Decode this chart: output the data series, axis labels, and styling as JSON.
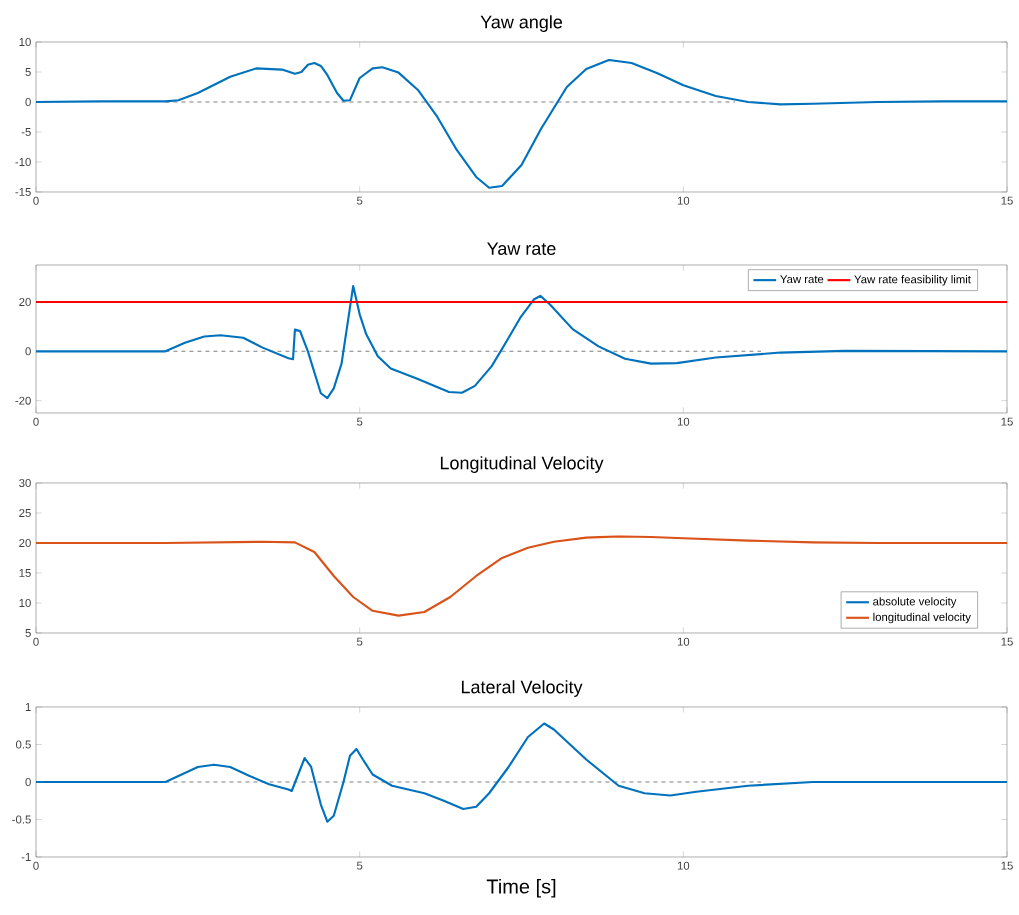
{
  "chart_data": [
    {
      "type": "line",
      "title": "Yaw angle",
      "xlim": [
        0,
        15
      ],
      "xticks": [
        0,
        5,
        10,
        15
      ],
      "ylim": [
        -15,
        10
      ],
      "yticks": [
        -15,
        -10,
        -5,
        0,
        5,
        10
      ],
      "series": [
        {
          "color": "#808080",
          "line_style": "dashed",
          "x": [
            2,
            10.8
          ],
          "values": [
            0,
            0
          ]
        },
        {
          "color": "#0072bd",
          "x": [
            0,
            1,
            2,
            2.2,
            2.5,
            3,
            3.4,
            3.8,
            4.0,
            4.1,
            4.2,
            4.3,
            4.4,
            4.5,
            4.65,
            4.75,
            4.85,
            5.0,
            5.2,
            5.35,
            5.6,
            5.9,
            6.2,
            6.5,
            6.8,
            7.0,
            7.2,
            7.5,
            7.8,
            8.0,
            8.2,
            8.5,
            8.85,
            9.2,
            9.6,
            10.0,
            10.5,
            11,
            11.5,
            12,
            13,
            14,
            15
          ],
          "values": [
            0,
            0.1,
            0.1,
            0.3,
            1.5,
            4.2,
            5.6,
            5.4,
            4.7,
            5.0,
            6.2,
            6.5,
            6.0,
            4.5,
            1.5,
            0.2,
            0.3,
            4.0,
            5.6,
            5.8,
            4.9,
            2.0,
            -2.5,
            -8,
            -12.5,
            -14.3,
            -14,
            -10.5,
            -4.5,
            -1,
            2.5,
            5.5,
            7.0,
            6.5,
            4.8,
            2.8,
            1.0,
            0.0,
            -0.4,
            -0.3,
            0,
            0.1,
            0.1
          ]
        }
      ]
    },
    {
      "type": "line",
      "title": "Yaw rate",
      "xlim": [
        0,
        15
      ],
      "xticks": [
        0,
        5,
        10,
        15
      ],
      "ylim": [
        -25,
        35
      ],
      "yticks": [
        -20,
        0,
        20
      ],
      "legend": "top right",
      "series": [
        {
          "color": "#808080",
          "line_style": "dashed",
          "x": [
            2,
            11.2
          ],
          "values": [
            0,
            0
          ]
        },
        {
          "name": "Yaw rate",
          "color": "#0072bd",
          "x": [
            0,
            1,
            2,
            2.3,
            2.6,
            2.85,
            3.2,
            3.5,
            3.9,
            3.97,
            4.0,
            4.08,
            4.2,
            4.4,
            4.5,
            4.6,
            4.72,
            4.9,
            5.0,
            5.1,
            5.28,
            5.48,
            5.88,
            6.38,
            6.58,
            6.78,
            7.04,
            7.29,
            7.49,
            7.69,
            7.79,
            7.94,
            8.29,
            8.69,
            9.1,
            9.5,
            9.9,
            10.5,
            11.5,
            12.5,
            15
          ],
          "values": [
            0,
            0,
            0,
            3.5,
            6,
            6.5,
            5.5,
            1.5,
            -2.8,
            -3.2,
            8.8,
            8.2,
            0,
            -17,
            -19,
            -15,
            -5,
            26.5,
            15,
            7,
            -2,
            -7,
            -11,
            -16.5,
            -16.8,
            -14,
            -6,
            5,
            14,
            21,
            22.5,
            19,
            9,
            2,
            -3,
            -5,
            -4.8,
            -2.5,
            -0.5,
            0.2,
            0
          ]
        },
        {
          "name": "Yaw rate feasibility limit",
          "color": "#ff0000",
          "x": [
            0,
            15
          ],
          "values": [
            20,
            20
          ]
        }
      ]
    },
    {
      "type": "line",
      "title": "Longitudinal Velocity",
      "xlim": [
        0,
        15
      ],
      "xticks": [
        0,
        5,
        10,
        15
      ],
      "ylim": [
        5,
        30
      ],
      "yticks": [
        5,
        10,
        15,
        20,
        25,
        30
      ],
      "legend": "bottom right",
      "series": [
        {
          "name": "absolute velocity",
          "color": "#0072bd"
        },
        {
          "name": "longitudinal velocity",
          "color": "#d95319",
          "x": [
            0,
            2,
            3.5,
            4.0,
            4.3,
            4.6,
            4.9,
            5.2,
            5.6,
            6.0,
            6.4,
            6.8,
            7.2,
            7.6,
            8.0,
            8.5,
            9.0,
            9.5,
            10,
            11,
            12,
            13,
            15
          ],
          "values": [
            20,
            20,
            20.2,
            20.1,
            18.5,
            14.5,
            11,
            8.7,
            7.9,
            8.5,
            11,
            14.5,
            17.5,
            19.2,
            20.2,
            20.9,
            21.1,
            21.0,
            20.8,
            20.4,
            20.1,
            20,
            20
          ]
        }
      ]
    },
    {
      "type": "line",
      "title": "Lateral Velocity",
      "xlabel": "Time [s]",
      "xlim": [
        0,
        15
      ],
      "xticks": [
        0,
        5,
        10,
        15
      ],
      "ylim": [
        -1,
        1
      ],
      "yticks": [
        -1,
        -0.5,
        0,
        0.5,
        1
      ],
      "series": [
        {
          "color": "#808080",
          "line_style": "dashed",
          "x": [
            2,
            11.2
          ],
          "values": [
            0,
            0
          ]
        },
        {
          "color": "#0072bd",
          "x": [
            0,
            2,
            2.2,
            2.5,
            2.75,
            3,
            3.3,
            3.6,
            3.9,
            3.95,
            4.05,
            4.15,
            4.25,
            4.4,
            4.5,
            4.6,
            4.75,
            4.85,
            4.95,
            5.05,
            5.2,
            5.5,
            6.0,
            6.3,
            6.6,
            6.8,
            7.0,
            7.3,
            7.6,
            7.85,
            8.0,
            8.5,
            9.0,
            9.4,
            9.8,
            10.2,
            11,
            12,
            13,
            15
          ],
          "values": [
            0,
            0,
            0.08,
            0.2,
            0.23,
            0.2,
            0.08,
            -0.03,
            -0.1,
            -0.12,
            0.1,
            0.32,
            0.2,
            -0.3,
            -0.53,
            -0.45,
            0,
            0.35,
            0.44,
            0.3,
            0.1,
            -0.05,
            -0.15,
            -0.25,
            -0.36,
            -0.33,
            -0.15,
            0.2,
            0.6,
            0.78,
            0.7,
            0.3,
            -0.05,
            -0.15,
            -0.18,
            -0.13,
            -0.05,
            0,
            0,
            0
          ]
        }
      ]
    }
  ]
}
